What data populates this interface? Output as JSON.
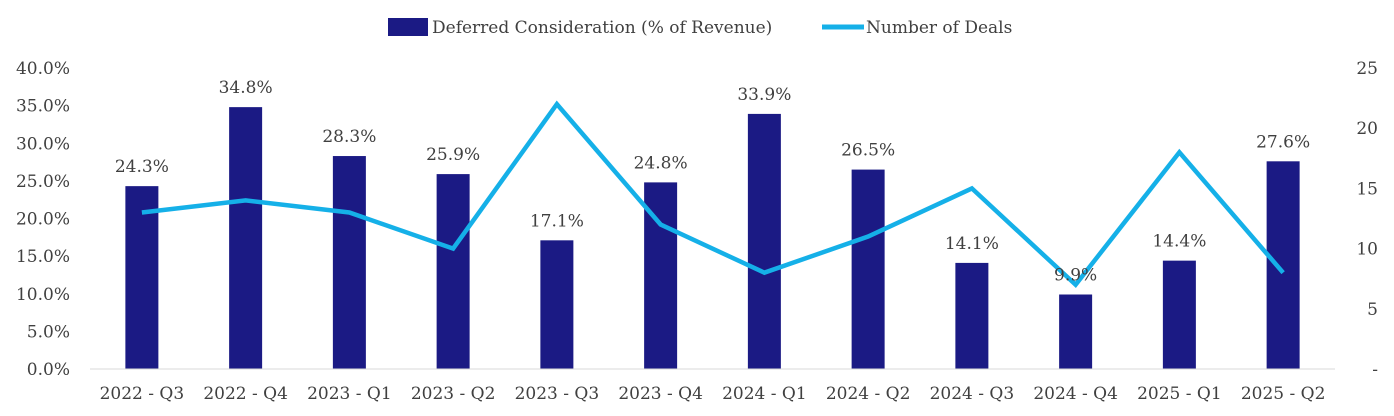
{
  "chart_data": {
    "type": "bar+line",
    "categories": [
      "2022 - Q3",
      "2022 - Q4",
      "2023 - Q1",
      "2023 - Q2",
      "2023 - Q3",
      "2023 - Q4",
      "2024 - Q1",
      "2024 - Q2",
      "2024 - Q3",
      "2024 - Q4",
      "2025 - Q1",
      "2025 - Q2"
    ],
    "series": [
      {
        "name": "Deferred Consideration (% of Revenue)",
        "type": "bar",
        "axis": "left",
        "color": "#1b1a84",
        "values": [
          24.3,
          34.8,
          28.3,
          25.9,
          17.1,
          24.8,
          33.9,
          26.5,
          14.1,
          9.9,
          14.4,
          27.6
        ],
        "labels": [
          "24.3%",
          "34.8%",
          "28.3%",
          "25.9%",
          "17.1%",
          "24.8%",
          "33.9%",
          "26.5%",
          "14.1%",
          "9.9%",
          "14.4%",
          "27.6%"
        ]
      },
      {
        "name": "Number of Deals",
        "type": "line",
        "axis": "right",
        "color": "#15b0e8",
        "values": [
          13,
          14,
          13,
          10,
          22,
          12,
          8,
          11,
          15,
          7,
          18,
          8
        ]
      }
    ],
    "y_left": {
      "min": 0,
      "max": 40,
      "step": 5,
      "tick_labels": [
        "0.0%",
        "5.0%",
        "10.0%",
        "15.0%",
        "20.0%",
        "25.0%",
        "30.0%",
        "35.0%",
        "40.0%"
      ]
    },
    "y_right": {
      "min": 0,
      "max": 25,
      "step": 5,
      "tick_labels": [
        "-",
        "5",
        "10",
        "15",
        "20",
        "25"
      ]
    },
    "legend_position": "top-center",
    "grid": false
  }
}
